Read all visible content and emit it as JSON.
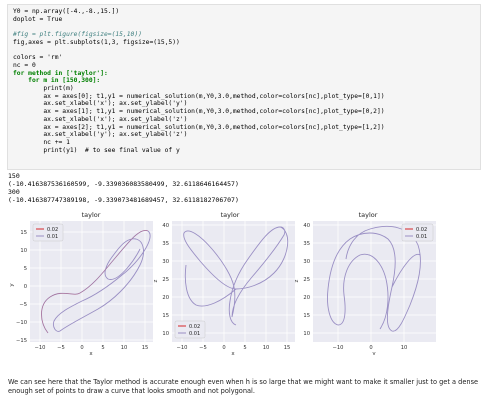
{
  "code_lines": [
    "Y0 = np.array([-4.,-8.,15.])",
    "doplot = True",
    "",
    "#fig = plt.figure(figsize=(15,10))",
    "fig,axes = plt.subplots(1,3, figsize=(15,5))",
    "",
    "colors = 'rm'",
    "nc = 0",
    "for method in ['taylor']:",
    "    for m in [150,300]:",
    "        print(m)",
    "        ax = axes[0]; t1,y1 = numerical_solution(m,Y0,3.0,method,color=colors[nc],plot_type=[0,1])",
    "        ax.set_xlabel('x'); ax.set_ylabel('y')",
    "        ax = axes[1]; t1,y1 = numerical_solution(m,Y0,3.0,method,color=colors[nc],plot_type=[0,2])",
    "        ax.set_xlabel('x'); ax.set_ylabel('z')",
    "        ax = axes[2]; t1,y1 = numerical_solution(m,Y0,3.0,method,color=colors[nc],plot_type=[1,2])",
    "        ax.set_xlabel('y'); ax.set_ylabel('z')",
    "        nc += 1",
    "        print(y1)  # to see final value of y"
  ],
  "output_lines": [
    "150",
    "(-10.416387536160599, -9.339036083580499, 32.6118646164457)",
    "300",
    "(-10.416387747389198, -9.339073481689457, 32.6118182706707)"
  ],
  "plots": [
    {
      "title": "taylor",
      "xlabel": "x",
      "ylabel": "y",
      "xticks": [
        "−10",
        "−5",
        "0",
        "5",
        "10",
        "15"
      ],
      "yticks": [
        "15",
        "10",
        "5",
        "0",
        "−5",
        "−10",
        "−15"
      ],
      "legend": {
        "placement": "top-left",
        "entries": [
          "0.02",
          "0.01"
        ]
      }
    },
    {
      "title": "taylor",
      "xlabel": "x",
      "ylabel": "z",
      "xticks": [
        "−10",
        "−5",
        "0",
        "5",
        "10",
        "15"
      ],
      "yticks": [
        "40",
        "35",
        "30",
        "25",
        "20",
        "15",
        "10"
      ],
      "legend": {
        "placement": "bottom-left",
        "entries": [
          "0.02",
          "0.01"
        ]
      }
    },
    {
      "title": "taylor",
      "xlabel": "y",
      "ylabel": "z",
      "xticks": [
        "−10",
        "0",
        "10"
      ],
      "yticks": [
        "40",
        "35",
        "30",
        "25",
        "20",
        "15",
        "10"
      ],
      "legend": {
        "placement": "top-right",
        "entries": [
          "0.02",
          "0.01"
        ]
      }
    }
  ],
  "series_colors": {
    "0.02": "#d62728",
    "0.01": "#9a8fc4"
  },
  "markdown": "We can see here that the Taylor method is accurate enough even when h is so large that we might want to make it smaller just to get a dense enough set of points to draw a curve that looks smooth and not polygonal."
}
